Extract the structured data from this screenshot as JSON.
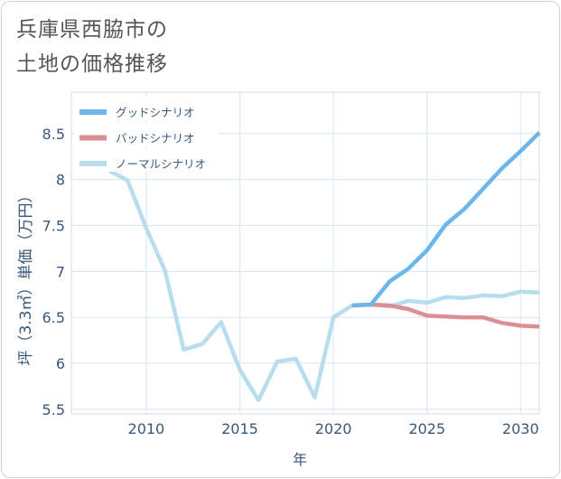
{
  "title": {
    "line1": "兵庫県西脇市の",
    "line2": "土地の価格推移"
  },
  "chart_data": {
    "type": "line",
    "xlabel": "年",
    "ylabel": "坪（3.3㎡）単価（万円）",
    "xlim": [
      2006,
      2031
    ],
    "ylim": [
      5.45,
      8.95
    ],
    "x_ticks": [
      2010,
      2015,
      2020,
      2025,
      2030
    ],
    "y_ticks": [
      5.5,
      6,
      6.5,
      7,
      7.5,
      8,
      8.5
    ],
    "x_tick_labels": [
      "2010",
      "2015",
      "2020",
      "2025",
      "2030"
    ],
    "y_tick_labels": [
      "5.5",
      "6",
      "6.5",
      "7",
      "7.5",
      "8",
      "8.5"
    ],
    "grid": true,
    "legend_position": "top-left",
    "series": [
      {
        "name": "グッドシナリオ",
        "color": "#6cb6ec",
        "x": [
          2021,
          2022,
          2023,
          2024,
          2025,
          2026,
          2027,
          2028,
          2029,
          2030,
          2031
        ],
        "y": [
          6.63,
          6.64,
          6.89,
          7.03,
          7.23,
          7.51,
          7.68,
          7.9,
          8.12,
          8.31,
          8.51
        ]
      },
      {
        "name": "バッドシナリオ",
        "color": "#db8f95",
        "x": [
          2021,
          2022,
          2023,
          2024,
          2025,
          2026,
          2027,
          2028,
          2029,
          2030,
          2031
        ],
        "y": [
          6.63,
          6.64,
          6.63,
          6.59,
          6.52,
          6.51,
          6.5,
          6.5,
          6.44,
          6.41,
          6.4
        ]
      },
      {
        "name": "ノーマルシナリオ",
        "color": "#b8dded",
        "x": [
          2008,
          2009,
          2010,
          2011,
          2012,
          2013,
          2014,
          2015,
          2016,
          2017,
          2018,
          2019,
          2020,
          2021,
          2022,
          2023,
          2024,
          2025,
          2026,
          2027,
          2028,
          2029,
          2030,
          2031
        ],
        "y": [
          8.1,
          7.99,
          7.47,
          7.01,
          6.15,
          6.21,
          6.45,
          5.93,
          5.6,
          6.02,
          6.05,
          5.63,
          6.5,
          6.63,
          6.64,
          6.62,
          6.68,
          6.66,
          6.72,
          6.71,
          6.74,
          6.73,
          6.78,
          6.77
        ]
      }
    ]
  }
}
